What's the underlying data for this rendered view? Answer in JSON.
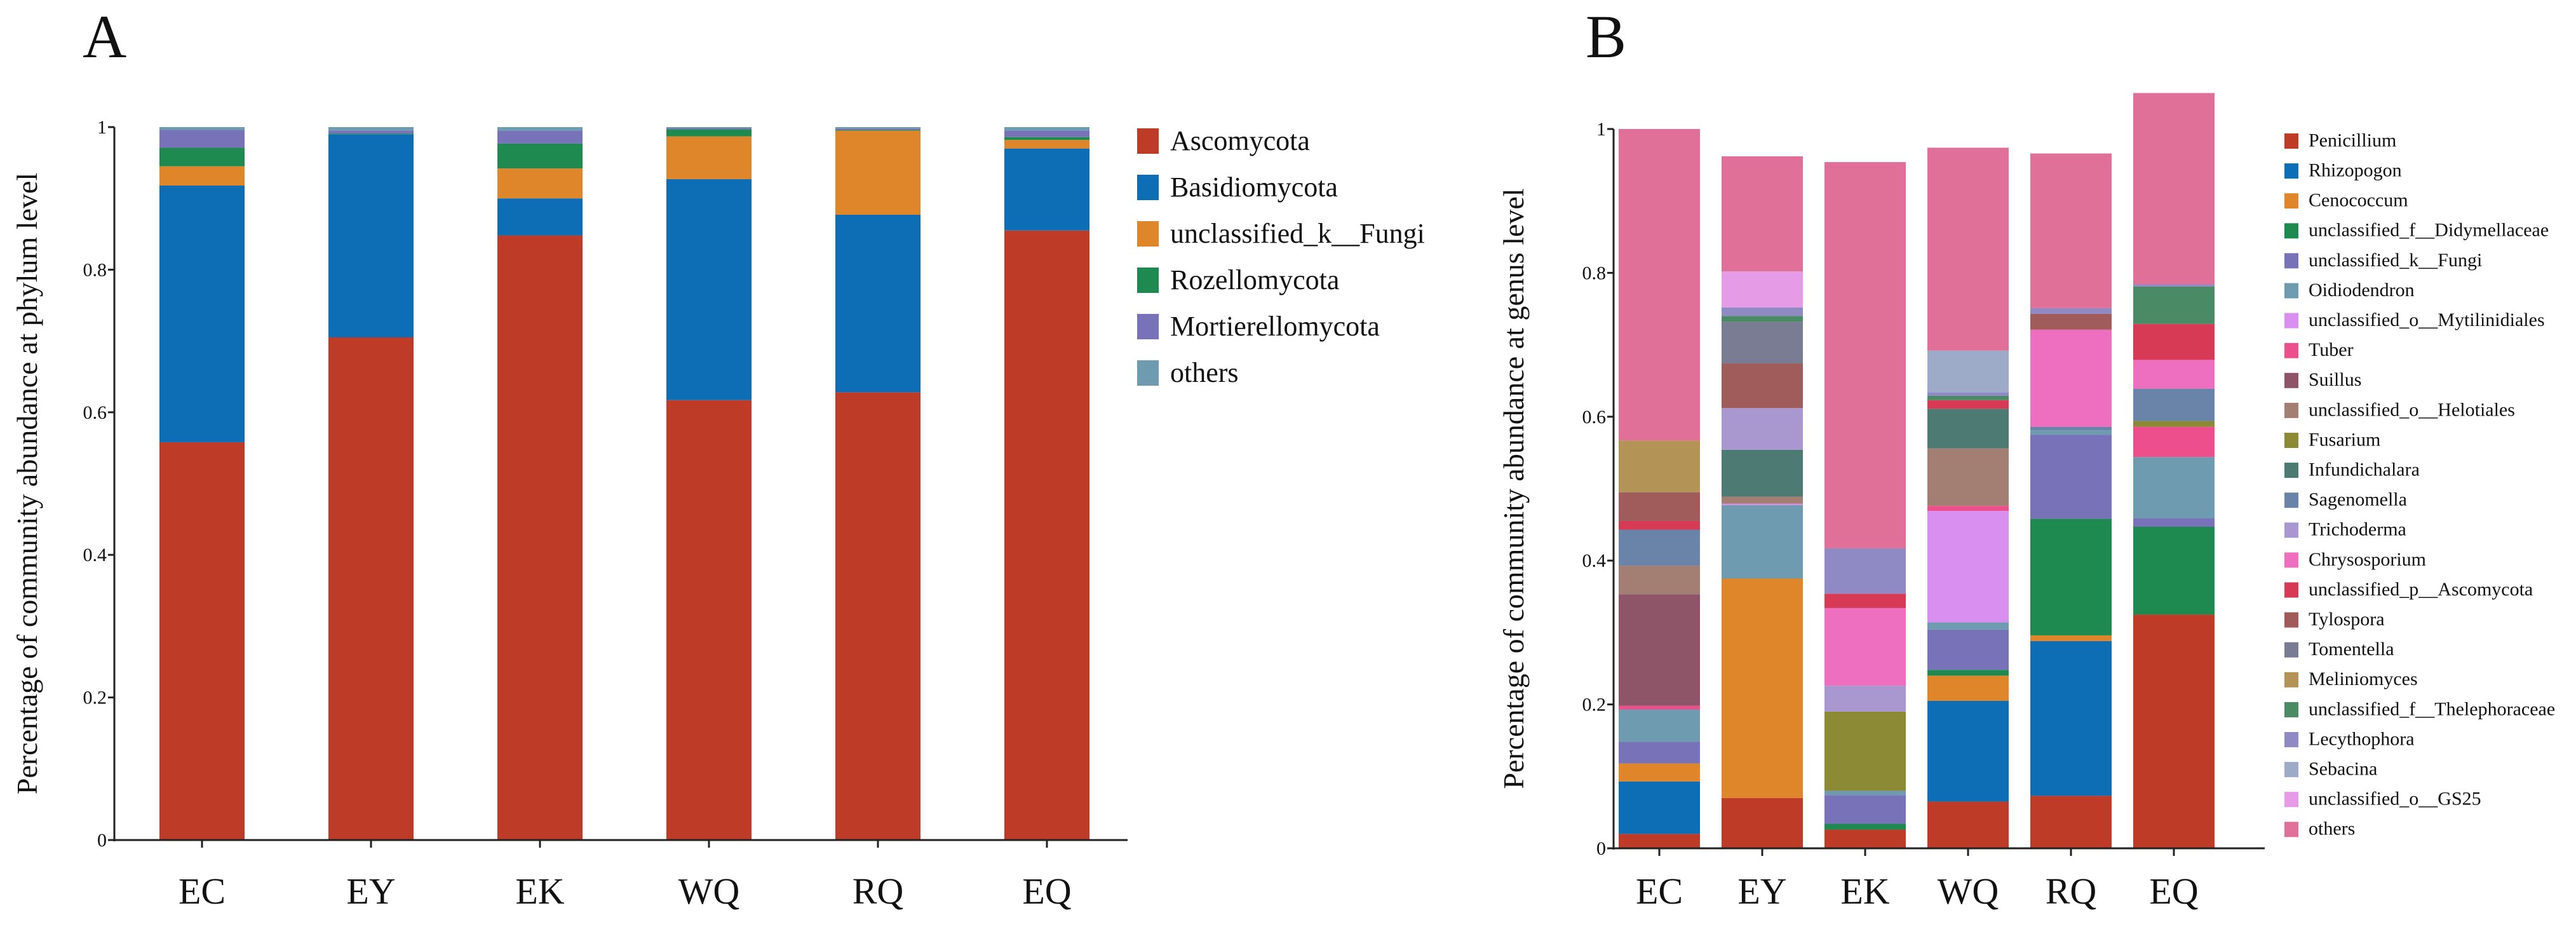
{
  "chart_data": [
    {
      "panel": "A",
      "type": "bar",
      "stacked": true,
      "title": "",
      "xlabel": "",
      "ylabel": "Percentage of community abundance at phylum level",
      "ylim": [
        0,
        1
      ],
      "yticks": [
        "0",
        "0.2",
        "0.4",
        "0.6",
        "0.8",
        "1"
      ],
      "legend_position": "right",
      "categories": [
        "EC",
        "EY",
        "EK",
        "WQ",
        "RQ",
        "EQ"
      ],
      "series": [
        {
          "name": "Ascomycota",
          "color": "#bd3b27",
          "values": [
            0.558,
            0.705,
            0.848,
            0.617,
            0.628,
            0.855
          ]
        },
        {
          "name": "Basidiomycota",
          "color": "#0d6eb5",
          "values": [
            0.36,
            0.285,
            0.052,
            0.31,
            0.249,
            0.115
          ]
        },
        {
          "name": "unclassified_k__Fungi",
          "color": "#e0862a",
          "values": [
            0.027,
            0.0,
            0.042,
            0.06,
            0.118,
            0.012
          ]
        },
        {
          "name": "Rozellomycota",
          "color": "#1f8a4f",
          "values": [
            0.026,
            0.001,
            0.035,
            0.01,
            0.001,
            0.004
          ]
        },
        {
          "name": "Mortierellomycota",
          "color": "#7873b8",
          "values": [
            0.025,
            0.004,
            0.018,
            0.002,
            0.002,
            0.009
          ]
        },
        {
          "name": "others",
          "color": "#6f9bb0",
          "values": [
            0.004,
            0.005,
            0.005,
            0.001,
            0.002,
            0.005
          ]
        }
      ]
    },
    {
      "panel": "B",
      "type": "bar",
      "stacked": true,
      "title": "",
      "xlabel": "",
      "ylabel": "Percentage of community abundance at genus level",
      "ylim": [
        0,
        1
      ],
      "yticks": [
        "0",
        "0.2",
        "0.4",
        "0.6",
        "0.8",
        "1"
      ],
      "legend_position": "right",
      "categories": [
        "EC",
        "EY",
        "EK",
        "WQ",
        "RQ",
        "EQ"
      ],
      "series": [
        {
          "name": "Penicillium",
          "color": "#bd3b27",
          "values": [
            0.02,
            0.07,
            0.026,
            0.065,
            0.073,
            0.325
          ]
        },
        {
          "name": "Rhizopogon",
          "color": "#0d6eb5",
          "values": [
            0.073,
            0.0,
            0.0,
            0.14,
            0.215,
            0.0
          ]
        },
        {
          "name": "Cenococcum",
          "color": "#e0862a",
          "values": [
            0.025,
            0.305,
            0.0,
            0.035,
            0.008,
            0.0
          ]
        },
        {
          "name": "unclassified_f__Didymellaceae",
          "color": "#1f8a4f",
          "values": [
            0.0,
            0.0,
            0.008,
            0.008,
            0.162,
            0.122
          ]
        },
        {
          "name": "unclassified_k__Fungi",
          "color": "#7873b8",
          "values": [
            0.03,
            0.0,
            0.04,
            0.056,
            0.117,
            0.012
          ]
        },
        {
          "name": "Oidiodendron",
          "color": "#6f9bb0",
          "values": [
            0.045,
            0.102,
            0.006,
            0.01,
            0.006,
            0.085
          ]
        },
        {
          "name": "unclassified_o__Mytilinidiales",
          "color": "#d98ff0",
          "values": [
            0.0,
            0.002,
            0.0,
            0.155,
            0.0,
            0.0
          ]
        },
        {
          "name": "Tuber",
          "color": "#ec4f8b",
          "values": [
            0.005,
            0.0,
            0.0,
            0.007,
            0.0,
            0.042
          ]
        },
        {
          "name": "Suillus",
          "color": "#8e5568",
          "values": [
            0.155,
            0.0,
            0.0,
            0.0,
            0.0,
            0.0
          ]
        },
        {
          "name": "unclassified_o__Helotiales",
          "color": "#a37e72",
          "values": [
            0.04,
            0.01,
            0.0,
            0.08,
            0.0,
            0.0
          ]
        },
        {
          "name": "Fusarium",
          "color": "#8c8a35",
          "values": [
            0.0,
            0.0,
            0.11,
            0.0,
            0.0,
            0.008
          ]
        },
        {
          "name": "Infundichalara",
          "color": "#4d7b74",
          "values": [
            0.0,
            0.065,
            0.0,
            0.055,
            0.0,
            0.0
          ]
        },
        {
          "name": "Sagenomella",
          "color": "#6a83a8",
          "values": [
            0.05,
            0.0,
            0.0,
            0.0,
            0.005,
            0.045
          ]
        },
        {
          "name": "Trichoderma",
          "color": "#a998cf",
          "values": [
            0.0,
            0.058,
            0.036,
            0.0,
            0.0,
            0.0
          ]
        },
        {
          "name": "Chrysosporium",
          "color": "#ee6fbf",
          "values": [
            0.0,
            0.0,
            0.108,
            0.0,
            0.135,
            0.04
          ]
        },
        {
          "name": "unclassified_p__Ascomycota",
          "color": "#d63a55",
          "values": [
            0.012,
            0.0,
            0.02,
            0.012,
            0.0,
            0.05
          ]
        },
        {
          "name": "Tylospora",
          "color": "#a05b5b",
          "values": [
            0.04,
            0.062,
            0.0,
            0.0,
            0.022,
            0.0
          ]
        },
        {
          "name": "Tomentella",
          "color": "#797c93",
          "values": [
            0.0,
            0.058,
            0.0,
            0.0,
            0.0,
            0.0
          ]
        },
        {
          "name": "Meliniomyces",
          "color": "#b39356",
          "values": [
            0.072,
            0.0,
            0.0,
            0.0,
            0.0,
            0.0
          ]
        },
        {
          "name": "unclassified_f__Thelephoraceae",
          "color": "#4a8a64",
          "values": [
            0.0,
            0.008,
            0.0,
            0.006,
            0.0,
            0.052
          ]
        },
        {
          "name": "Lecythophora",
          "color": "#8f89c4",
          "values": [
            0.0,
            0.012,
            0.063,
            0.005,
            0.008,
            0.003
          ]
        },
        {
          "name": "Sebacina",
          "color": "#9daac8",
          "values": [
            0.0,
            0.0,
            0.0,
            0.058,
            0.0,
            0.0
          ]
        },
        {
          "name": "unclassified_o__GS25",
          "color": "#e69be6",
          "values": [
            0.0,
            0.05,
            0.0,
            0.0,
            0.0,
            0.0
          ]
        },
        {
          "name": "others",
          "color": "#e17098",
          "values": [
            0.433,
            0.16,
            0.537,
            0.282,
            0.215,
            0.266
          ]
        }
      ]
    }
  ]
}
